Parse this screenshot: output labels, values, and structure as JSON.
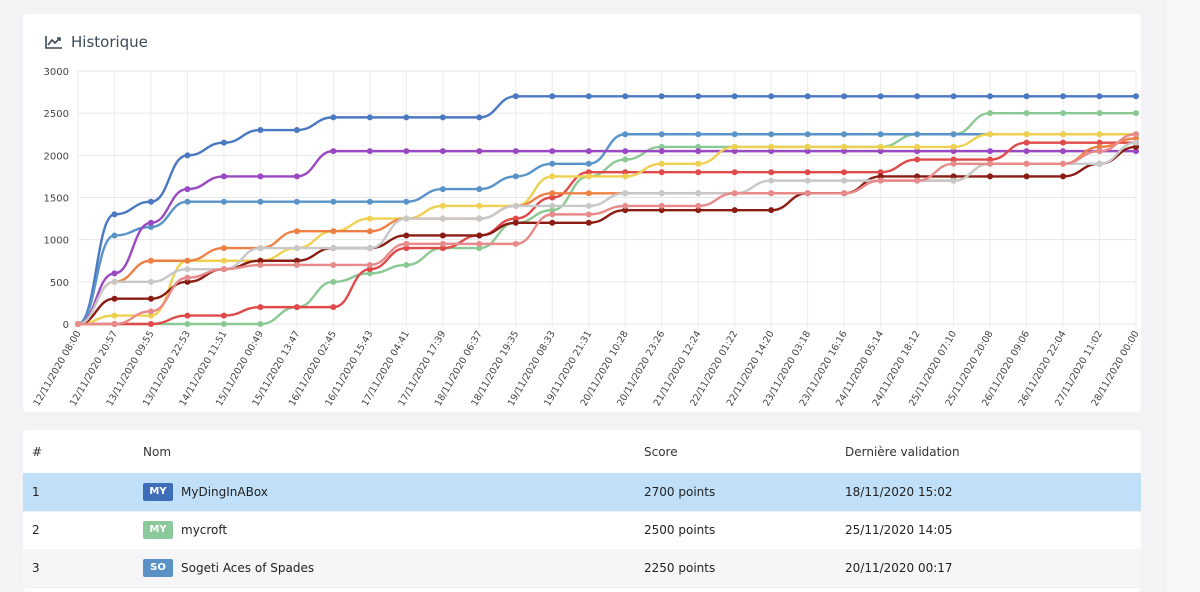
{
  "history_card": {
    "icon": "line-chart-icon",
    "title": "Historique"
  },
  "chart_data": {
    "type": "line",
    "title": "",
    "xlabel": "",
    "ylabel": "",
    "ylim": [
      0,
      3000
    ],
    "yticks": [
      0,
      500,
      1000,
      1500,
      2000,
      2500,
      3000
    ],
    "grid": true,
    "legend": "none",
    "x": [
      "12/11/2020 08:00",
      "12/11/2020 20:57",
      "13/11/2020 09:55",
      "13/11/2020 22:53",
      "14/11/2020 11:51",
      "15/11/2020 00:49",
      "15/11/2020 13:47",
      "16/11/2020 02:45",
      "16/11/2020 15:43",
      "17/11/2020 04:41",
      "17/11/2020 17:39",
      "18/11/2020 06:37",
      "18/11/2020 19:35",
      "19/11/2020 08:33",
      "19/11/2020 21:31",
      "20/11/2020 10:28",
      "20/11/2020 23:26",
      "21/11/2020 12:24",
      "22/11/2020 01:22",
      "22/11/2020 14:20",
      "23/11/2020 03:18",
      "23/11/2020 16:16",
      "24/11/2020 05:14",
      "24/11/2020 18:12",
      "25/11/2020 07:10",
      "25/11/2020 20:08",
      "26/11/2020 09:06",
      "26/11/2020 22:04",
      "27/11/2020 11:02",
      "28/11/2020 00:00"
    ],
    "series": [
      {
        "color": "#4a78c2",
        "values": [
          0,
          1300,
          1450,
          2000,
          2150,
          2300,
          2300,
          2450,
          2450,
          2450,
          2450,
          2450,
          2700,
          2700,
          2700,
          2700,
          2700,
          2700,
          2700,
          2700,
          2700,
          2700,
          2700,
          2700,
          2700,
          2700,
          2700,
          2700,
          2700,
          2700
        ]
      },
      {
        "color": "#8bc994",
        "values": [
          0,
          0,
          0,
          0,
          0,
          0,
          200,
          500,
          600,
          700,
          900,
          900,
          1200,
          1350,
          1750,
          1950,
          2100,
          2100,
          2100,
          2100,
          2100,
          2100,
          2100,
          2250,
          2250,
          2500,
          2500,
          2500,
          2500,
          2500
        ]
      },
      {
        "color": "#5a93c8",
        "values": [
          0,
          1050,
          1150,
          1450,
          1450,
          1450,
          1450,
          1450,
          1450,
          1450,
          1600,
          1600,
          1750,
          1900,
          1900,
          2250,
          2250,
          2250,
          2250,
          2250,
          2250,
          2250,
          2250,
          2250,
          2250,
          2250,
          2250,
          2250,
          2250,
          2250
        ]
      },
      {
        "color": "#9a49c2",
        "values": [
          0,
          600,
          1200,
          1600,
          1750,
          1750,
          1750,
          2050,
          2050,
          2050,
          2050,
          2050,
          2050,
          2050,
          2050,
          2050,
          2050,
          2050,
          2050,
          2050,
          2050,
          2050,
          2050,
          2050,
          2050,
          2050,
          2050,
          2050,
          2050,
          2050
        ]
      },
      {
        "color": "#e04a4a",
        "values": [
          0,
          0,
          0,
          100,
          100,
          200,
          200,
          200,
          650,
          900,
          900,
          1050,
          1250,
          1500,
          1800,
          1800,
          1800,
          1800,
          1800,
          1800,
          1800,
          1800,
          1800,
          1950,
          1950,
          1950,
          2150,
          2150,
          2150,
          2150
        ]
      },
      {
        "color": "#f0d050",
        "values": [
          0,
          100,
          100,
          750,
          750,
          750,
          900,
          1100,
          1250,
          1250,
          1400,
          1400,
          1400,
          1750,
          1750,
          1750,
          1900,
          1900,
          2100,
          2100,
          2100,
          2100,
          2100,
          2100,
          2100,
          2250,
          2250,
          2250,
          2250,
          2250
        ]
      },
      {
        "color": "#ee8044",
        "values": [
          0,
          500,
          750,
          750,
          900,
          900,
          1100,
          1100,
          1100,
          1250,
          1250,
          1250,
          1400,
          1550,
          1550,
          1550,
          1550,
          1550,
          1550,
          1550,
          1550,
          1550,
          1700,
          1700,
          1700,
          1900,
          1900,
          1900,
          2100,
          2200
        ]
      },
      {
        "color": "#8a1c14",
        "values": [
          0,
          300,
          300,
          500,
          650,
          750,
          750,
          900,
          900,
          1050,
          1050,
          1050,
          1200,
          1200,
          1200,
          1350,
          1350,
          1350,
          1350,
          1350,
          1550,
          1550,
          1750,
          1750,
          1750,
          1750,
          1750,
          1750,
          1900,
          2100
        ]
      },
      {
        "color": "#c8c8c8",
        "values": [
          0,
          500,
          500,
          650,
          650,
          900,
          900,
          900,
          900,
          1250,
          1250,
          1250,
          1400,
          1400,
          1400,
          1550,
          1550,
          1550,
          1550,
          1700,
          1700,
          1700,
          1700,
          1700,
          1700,
          1900,
          1900,
          1900,
          1900,
          2150
        ]
      },
      {
        "color": "#e88a8a",
        "values": [
          0,
          0,
          150,
          550,
          650,
          700,
          700,
          700,
          700,
          950,
          950,
          950,
          950,
          1300,
          1300,
          1400,
          1400,
          1400,
          1550,
          1550,
          1550,
          1550,
          1700,
          1700,
          1900,
          1900,
          1900,
          1900,
          2050,
          2250
        ]
      }
    ]
  },
  "table": {
    "columns": {
      "rank": "#",
      "name": "Nom",
      "score": "Score",
      "last": "Dernière validation"
    },
    "rows": [
      {
        "rank": "1",
        "badge": "MY",
        "badge_color": "#3f6eb8",
        "name": "MyDingInABox",
        "score": "2700 points",
        "last": "18/11/2020 15:02"
      },
      {
        "rank": "2",
        "badge": "MY",
        "badge_color": "#8cc99a",
        "name": "mycroft",
        "score": "2500 points",
        "last": "25/11/2020 14:05"
      },
      {
        "rank": "3",
        "badge": "SO",
        "badge_color": "#5b92c6",
        "name": "Sogeti Aces of Spades",
        "score": "2250 points",
        "last": "20/11/2020 00:17"
      }
    ]
  }
}
